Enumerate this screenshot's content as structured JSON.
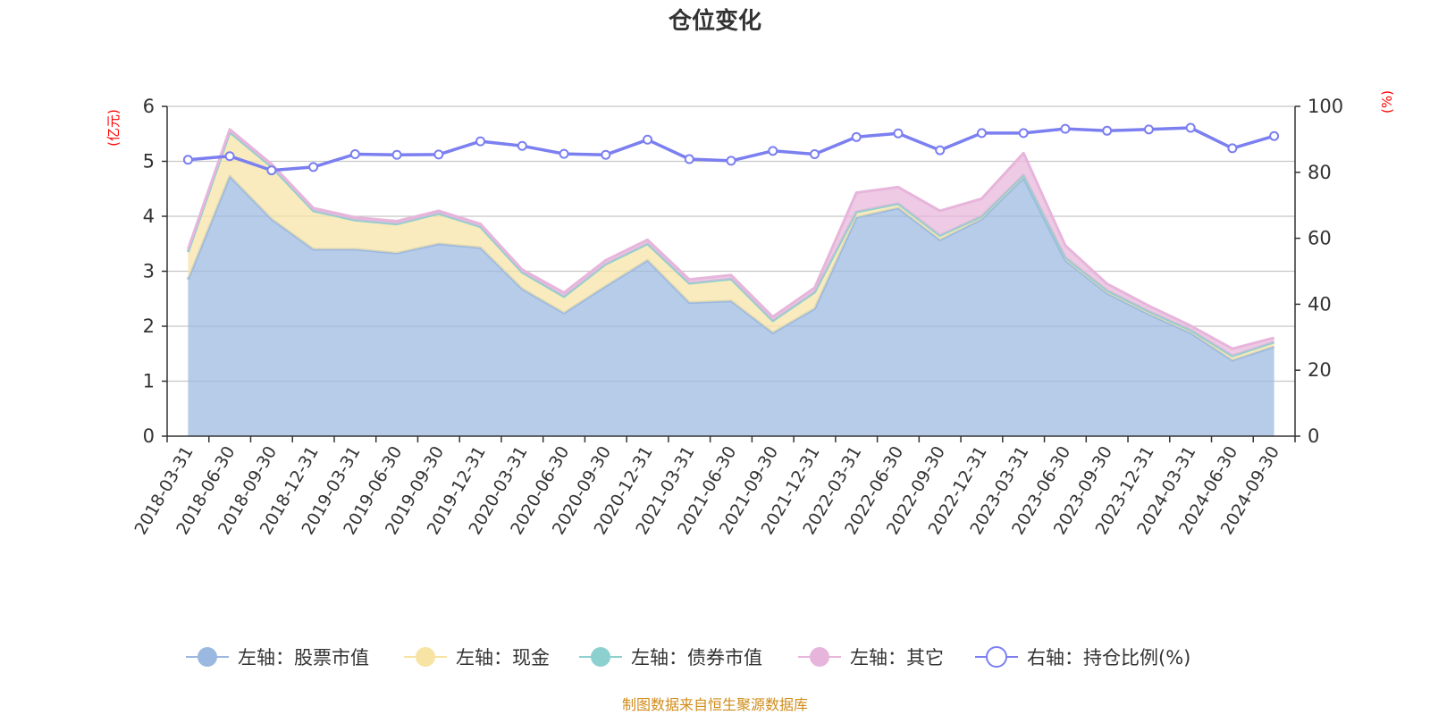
{
  "chart_data": {
    "type": "area",
    "title": "仓位变化",
    "left_axis": {
      "unit_label": "(亿元)",
      "ylim": [
        0,
        6
      ],
      "ticks": [
        "0",
        "1",
        "2",
        "3",
        "4",
        "5",
        "6"
      ]
    },
    "right_axis": {
      "unit_label": "(%)",
      "ylim": [
        0,
        100
      ],
      "ticks": [
        "0",
        "20",
        "40",
        "60",
        "80",
        "100"
      ]
    },
    "categories": [
      "2018-03-31",
      "2018-06-30",
      "2018-09-30",
      "2018-12-31",
      "2019-03-31",
      "2019-06-30",
      "2019-09-30",
      "2019-12-31",
      "2020-03-31",
      "2020-06-30",
      "2020-09-30",
      "2020-12-31",
      "2021-03-31",
      "2021-06-30",
      "2021-09-30",
      "2021-12-31",
      "2022-03-31",
      "2022-06-30",
      "2022-09-30",
      "2022-12-31",
      "2023-03-31",
      "2023-06-30",
      "2023-09-30",
      "2023-12-31",
      "2024-03-31",
      "2024-06-30",
      "2024-09-30"
    ],
    "series": [
      {
        "name": "左轴：股票市值",
        "axis": "left",
        "stack": true,
        "color": "#9ab8e0",
        "values": [
          2.85,
          4.73,
          3.95,
          3.4,
          3.4,
          3.33,
          3.5,
          3.43,
          2.68,
          2.24,
          2.73,
          3.2,
          2.43,
          2.46,
          1.88,
          2.32,
          3.98,
          4.15,
          3.57,
          3.95,
          4.7,
          3.2,
          2.6,
          2.22,
          1.88,
          1.38,
          1.63
        ]
      },
      {
        "name": "左轴：现金",
        "axis": "left",
        "stack": true,
        "color": "#f7e3a3",
        "values": [
          0.5,
          0.8,
          0.95,
          0.7,
          0.53,
          0.53,
          0.55,
          0.38,
          0.3,
          0.3,
          0.4,
          0.3,
          0.35,
          0.4,
          0.22,
          0.3,
          0.1,
          0.08,
          0.08,
          0.05,
          0.05,
          0.05,
          0.05,
          0.05,
          0.05,
          0.08,
          0.08
        ]
      },
      {
        "name": "左轴：债券市值",
        "axis": "left",
        "stack": true,
        "color": "#8dd0d0",
        "values": [
          0,
          0,
          0,
          0,
          0,
          0,
          0,
          0,
          0,
          0,
          0,
          0,
          0,
          0,
          0,
          0,
          0,
          0,
          0,
          0,
          0,
          0,
          0,
          0,
          0,
          0,
          0
        ]
      },
      {
        "name": "左轴：其它",
        "axis": "left",
        "stack": true,
        "color": "#e7b5db",
        "values": [
          0.05,
          0.05,
          0.05,
          0.05,
          0.05,
          0.05,
          0.05,
          0.05,
          0.05,
          0.07,
          0.07,
          0.07,
          0.07,
          0.07,
          0.07,
          0.08,
          0.35,
          0.3,
          0.45,
          0.32,
          0.4,
          0.22,
          0.12,
          0.1,
          0.08,
          0.13,
          0.08
        ]
      },
      {
        "name": "右轴：持仓比例(%)",
        "axis": "right",
        "type": "line",
        "color": "#7b7ff0",
        "values": [
          83.8,
          84.9,
          80.6,
          81.6,
          85.5,
          85.3,
          85.4,
          89.4,
          88.0,
          85.6,
          85.3,
          89.9,
          84.0,
          83.5,
          86.5,
          85.5,
          90.7,
          91.8,
          86.7,
          91.9,
          91.9,
          93.2,
          92.6,
          93.0,
          93.5,
          87.3,
          91.0
        ]
      }
    ],
    "legend_position": "bottom",
    "grid": true
  },
  "footer": {
    "source": "制图数据来自恒生聚源数据库"
  }
}
